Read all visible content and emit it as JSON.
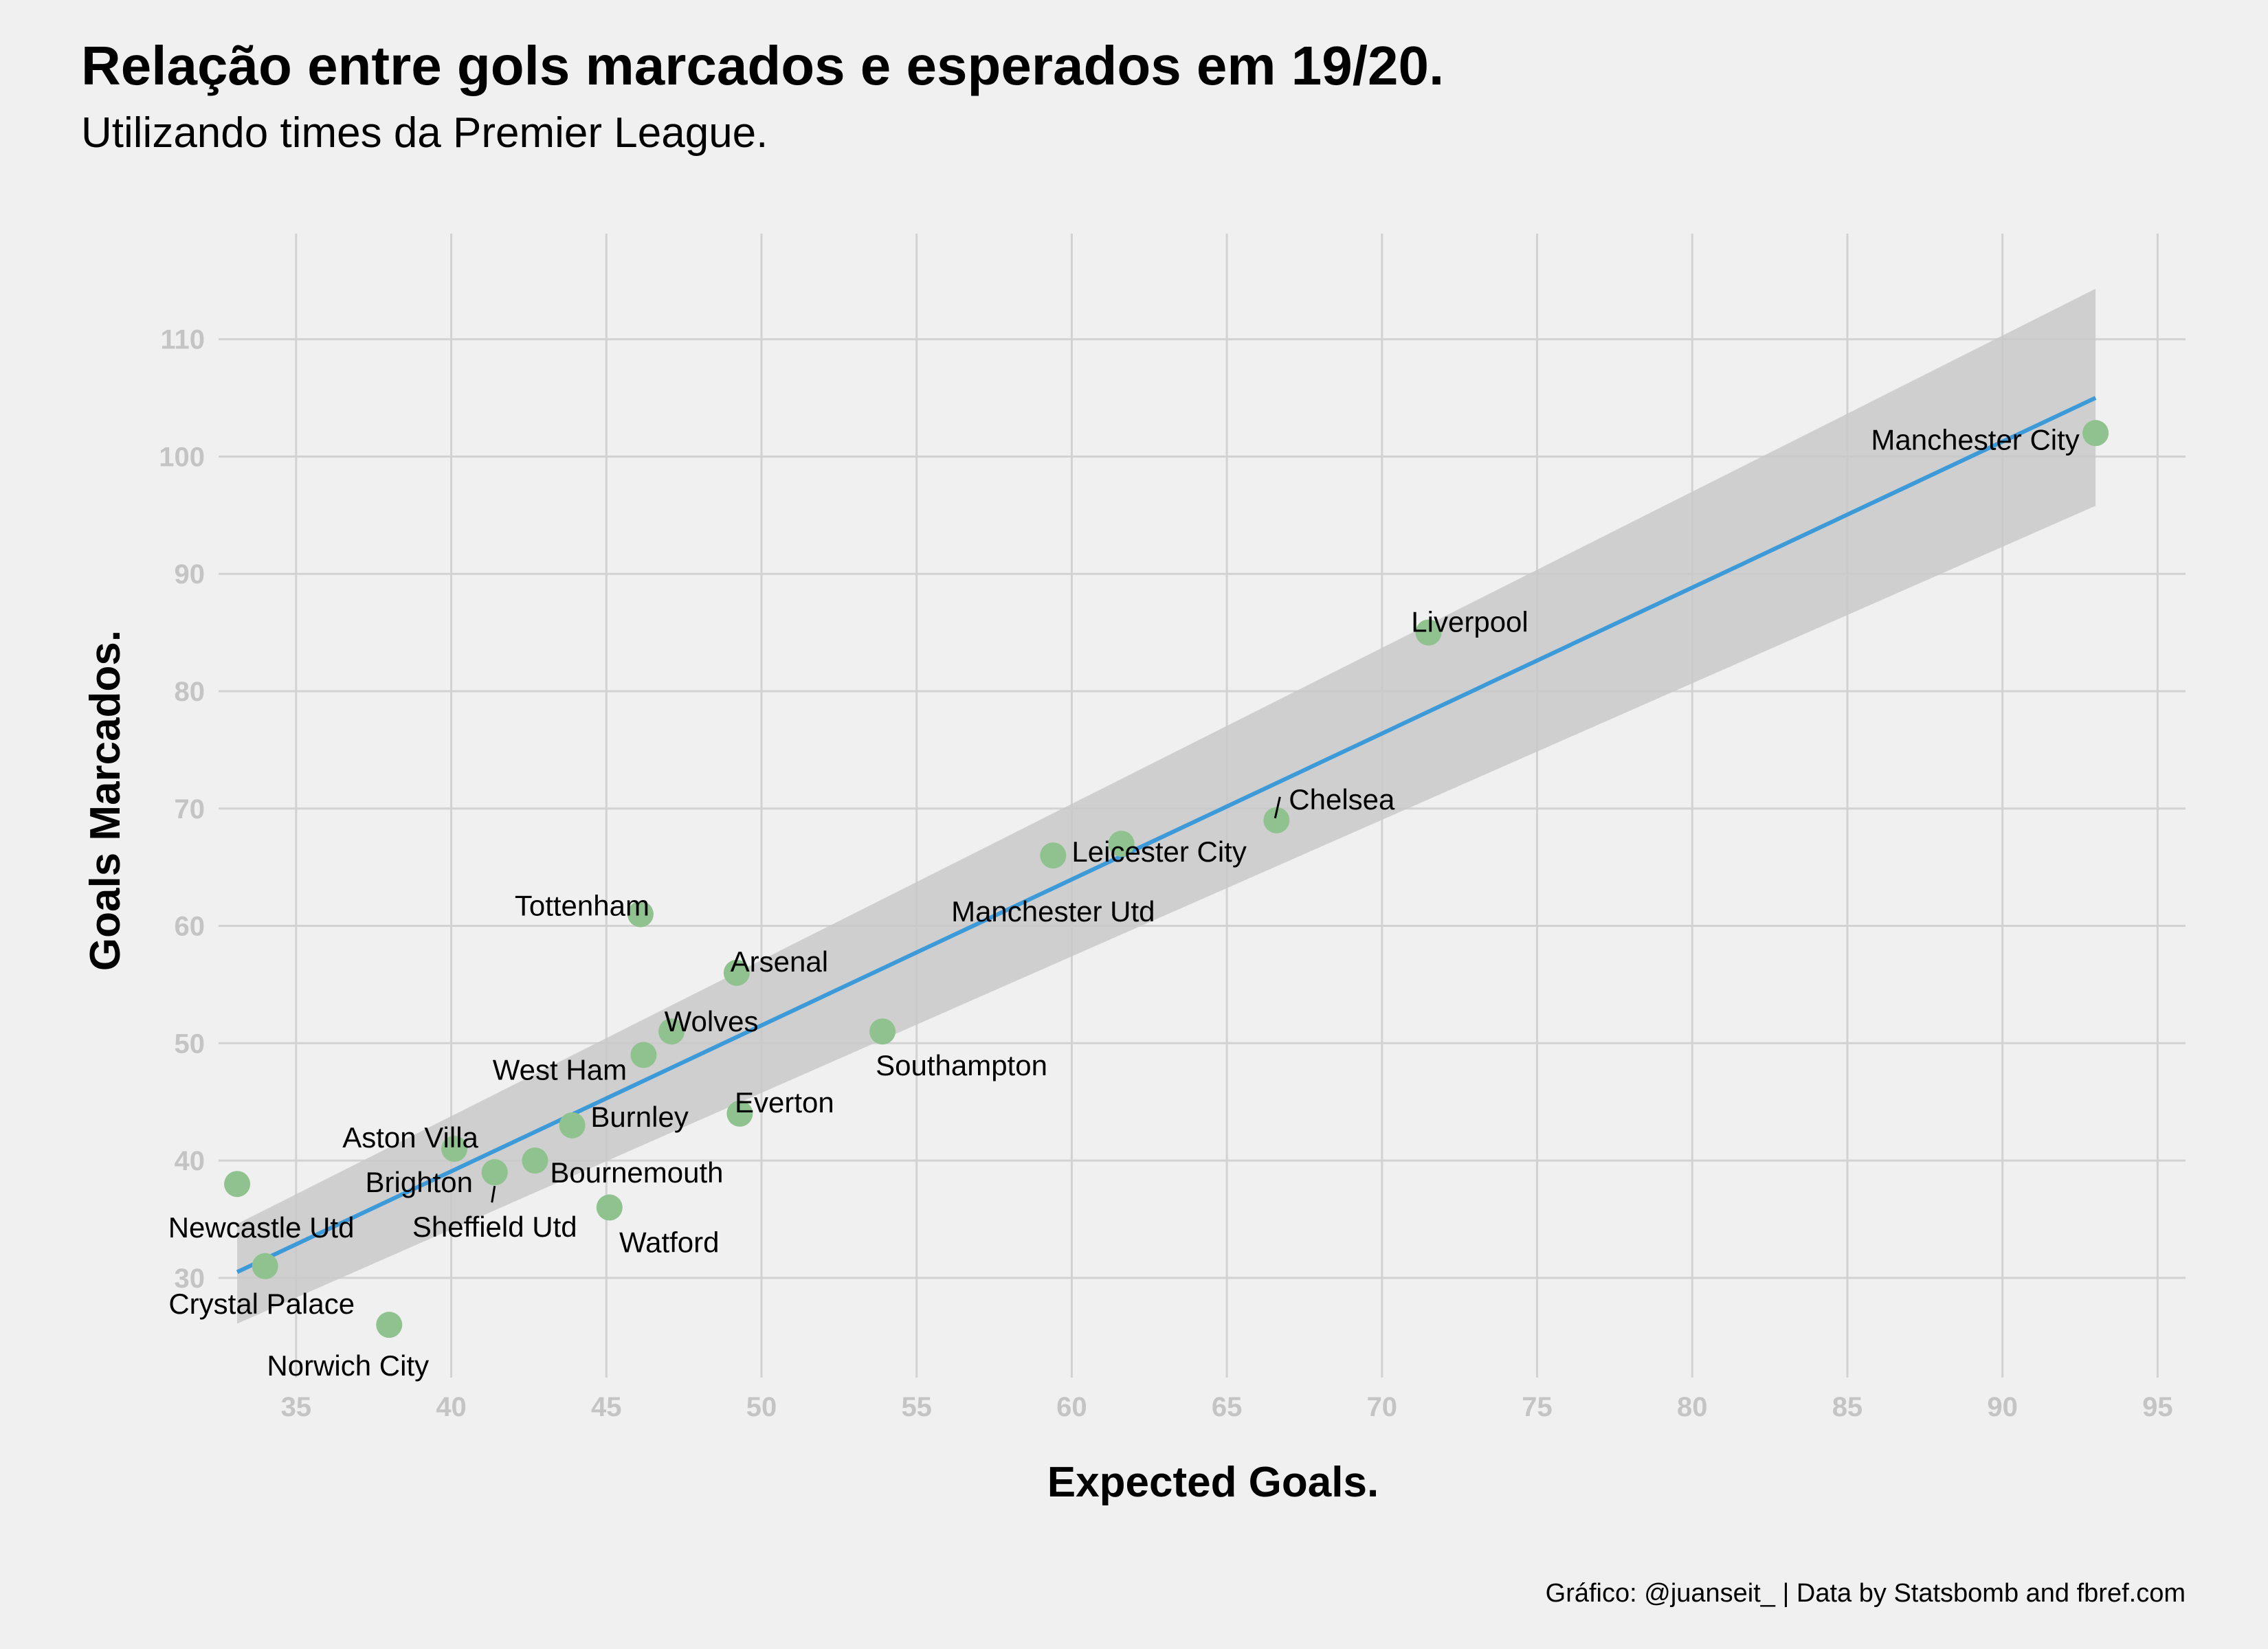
{
  "chart_data": {
    "type": "scatter",
    "title": "Relação entre gols marcados e esperados em 19/20.",
    "subtitle": "Utilizando times da Premier League.",
    "xlabel": "Expected Goals.",
    "ylabel": "Goals Marcados.",
    "caption": "Gráfico: @juanseit_ | Data by Statsbomb and fbref.com",
    "xlim": [
      32.5,
      95.9
    ],
    "ylim": [
      21.5,
      119
    ],
    "xticks": [
      35,
      40,
      45,
      50,
      55,
      60,
      65,
      70,
      75,
      80,
      85,
      90,
      95
    ],
    "yticks": [
      30,
      40,
      50,
      60,
      70,
      80,
      90,
      100,
      110
    ],
    "grid": true,
    "legend": "none",
    "colors": {
      "points": "#8fc28f",
      "trend_line": "#3d9ad9",
      "confidence_band": "#c9c9c9",
      "background": "#f0f0f0",
      "grid": "#d2d2d2"
    },
    "points": [
      {
        "team": "Manchester City",
        "x": 93.0,
        "y": 102
      },
      {
        "team": "Liverpool",
        "x": 71.5,
        "y": 85
      },
      {
        "team": "Chelsea",
        "x": 66.6,
        "y": 69
      },
      {
        "team": "Leicester City",
        "x": 61.6,
        "y": 67
      },
      {
        "team": "Manchester Utd",
        "x": 59.4,
        "y": 66
      },
      {
        "team": "Tottenham",
        "x": 46.1,
        "y": 61
      },
      {
        "team": "Arsenal",
        "x": 49.2,
        "y": 56
      },
      {
        "team": "Southampton",
        "x": 53.9,
        "y": 51
      },
      {
        "team": "Wolves",
        "x": 47.1,
        "y": 51
      },
      {
        "team": "West Ham",
        "x": 46.2,
        "y": 49
      },
      {
        "team": "Everton",
        "x": 49.3,
        "y": 44
      },
      {
        "team": "Burnley",
        "x": 43.9,
        "y": 43
      },
      {
        "team": "Aston Villa",
        "x": 40.1,
        "y": 41
      },
      {
        "team": "Bournemouth",
        "x": 42.7,
        "y": 40
      },
      {
        "team": "Brighton",
        "x": 41.4,
        "y": 39
      },
      {
        "team": "Sheffield Utd",
        "x": 41.4,
        "y": 39
      },
      {
        "team": "Newcastle Utd",
        "x": 33.1,
        "y": 38
      },
      {
        "team": "Watford",
        "x": 45.1,
        "y": 36
      },
      {
        "team": "Crystal Palace",
        "x": 34.0,
        "y": 31
      },
      {
        "team": "Norwich City",
        "x": 38.0,
        "y": 26
      }
    ],
    "trend_line": {
      "x": [
        33.1,
        93.0
      ],
      "y": [
        30.5,
        105.0
      ],
      "band_upper": [
        34.6,
        114.3
      ],
      "band_lower": [
        26.1,
        95.8
      ]
    }
  }
}
